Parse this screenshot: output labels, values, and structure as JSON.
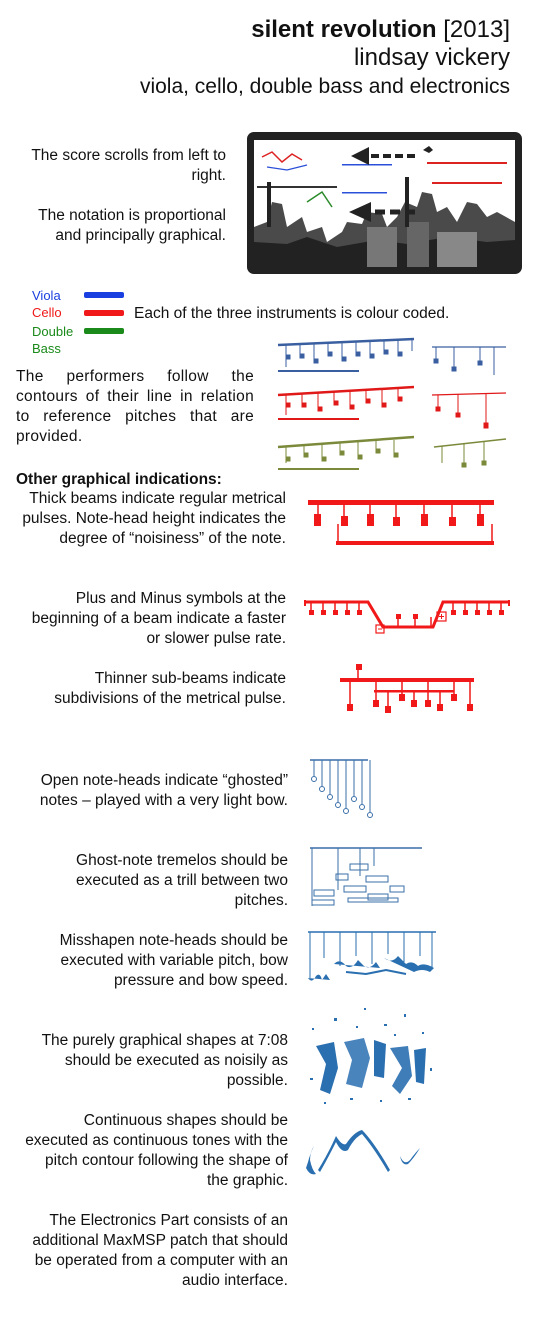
{
  "header": {
    "title_bold": "silent revolution",
    "title_year": "[2013]",
    "composer": "lindsay vickery",
    "instrumentation": "viola, cello, double bass and electronics"
  },
  "score_scroll": "The score scrolls from left to right.",
  "notation_type": "The notation is proportional and principally graphical.",
  "legend": {
    "viola": "Viola",
    "cello": "Cello",
    "double": "Double",
    "bass": "Bass",
    "caption": "Each of the three instruments is colour coded.",
    "colors": {
      "viola": "#1a3fe0",
      "cello": "#f01818",
      "bass": "#1a8a1a"
    }
  },
  "performers": "The performers follow the contours of their line in relation to reference pitches that are provided.",
  "other_heading": "Other graphical indications:",
  "items": {
    "thick_beams": "Thick beams indicate regular metrical pulses. Note-head height indicates the degree of “noisiness” of the note.",
    "plus_minus": "Plus and Minus symbols at the beginning of a beam indicate a faster or slower pulse rate.",
    "sub_beams": "Thinner sub-beams indicate subdivisions of the metrical pulse.",
    "open_heads": "Open note-heads indicate “ghosted” notes – played with a very light bow.",
    "tremelos": "Ghost-note tremelos should be executed as a trill between two pitches.",
    "misshapen": "Misshapen note-heads should be executed with variable pitch, bow pressure and bow speed.",
    "graphical_shapes": "The purely graphical shapes at 7:08 should be executed as noisily as possible.",
    "continuous": "Continuous shapes should be executed as continuous tones with the pitch contour following the shape of the graphic.",
    "electronics": "The Electronics Part consists of an additional MaxMSP patch that should be operated from a computer with an audio interface."
  },
  "accent_colors": {
    "notation_blue": "#3a6fa8",
    "ink_blue": "#2a6fb0",
    "score_frame": "#222222"
  }
}
